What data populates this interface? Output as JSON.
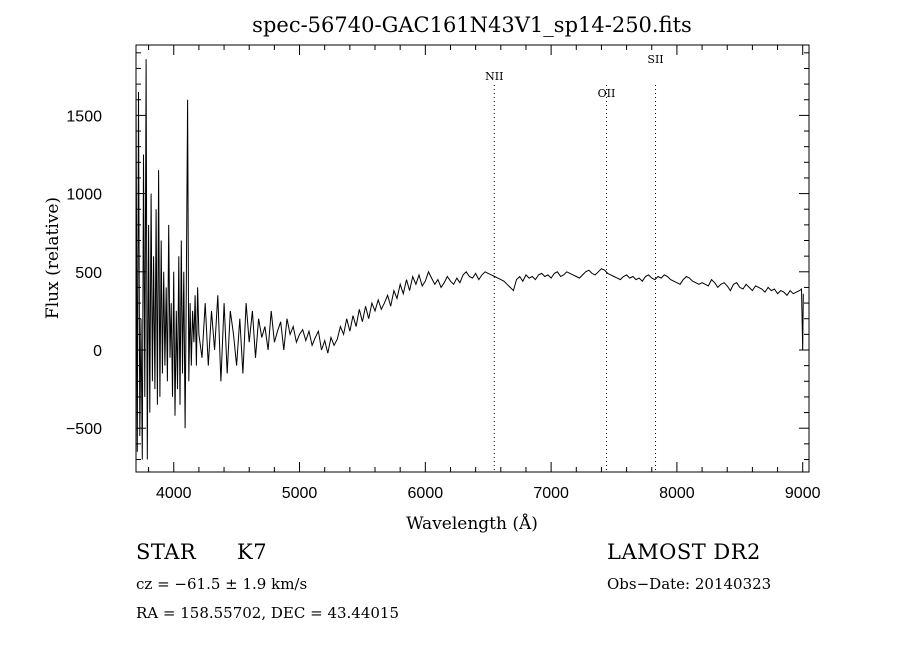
{
  "chart_data": {
    "type": "line",
    "title": "spec-56740-GAC161N43V1_sp14-250.fits",
    "xlabel": "Wavelength (Å)",
    "ylabel": "Flux (relative)",
    "xlim": [
      3700,
      9050
    ],
    "ylim": [
      -780,
      1950
    ],
    "xticks": [
      4000,
      5000,
      6000,
      7000,
      8000,
      9000
    ],
    "yticks": [
      -500,
      0,
      500,
      1000,
      1500
    ],
    "grid": false,
    "lines": [
      {
        "label": "NII",
        "x": 6548
      },
      {
        "label": "OII",
        "x": 7440
      },
      {
        "label": "SII",
        "x": 7830
      }
    ],
    "series": [
      {
        "name": "flux",
        "x": [
          3700,
          3710,
          3720,
          3730,
          3740,
          3750,
          3760,
          3770,
          3780,
          3790,
          3800,
          3810,
          3820,
          3830,
          3840,
          3850,
          3860,
          3870,
          3880,
          3890,
          3900,
          3910,
          3920,
          3930,
          3940,
          3950,
          3960,
          3970,
          3980,
          3990,
          4000,
          4010,
          4020,
          4030,
          4040,
          4050,
          4060,
          4070,
          4080,
          4090,
          4100,
          4110,
          4120,
          4130,
          4140,
          4150,
          4160,
          4170,
          4180,
          4190,
          4200,
          4225,
          4250,
          4275,
          4300,
          4325,
          4350,
          4375,
          4400,
          4425,
          4450,
          4475,
          4500,
          4525,
          4550,
          4575,
          4600,
          4625,
          4650,
          4675,
          4700,
          4725,
          4750,
          4775,
          4800,
          4825,
          4850,
          4875,
          4900,
          4925,
          4950,
          4975,
          5000,
          5025,
          5050,
          5075,
          5100,
          5125,
          5150,
          5175,
          5200,
          5225,
          5250,
          5275,
          5300,
          5325,
          5350,
          5375,
          5400,
          5425,
          5450,
          5475,
          5500,
          5525,
          5550,
          5575,
          5600,
          5625,
          5650,
          5675,
          5700,
          5725,
          5750,
          5775,
          5800,
          5825,
          5850,
          5875,
          5900,
          5925,
          5950,
          5975,
          6000,
          6025,
          6050,
          6075,
          6100,
          6125,
          6150,
          6175,
          6200,
          6225,
          6250,
          6275,
          6300,
          6325,
          6350,
          6375,
          6400,
          6425,
          6450,
          6475,
          6500,
          6525,
          6550,
          6575,
          6600,
          6625,
          6650,
          6675,
          6700,
          6725,
          6750,
          6775,
          6800,
          6825,
          6850,
          6875,
          6900,
          6925,
          6950,
          6975,
          7000,
          7025,
          7050,
          7075,
          7100,
          7125,
          7150,
          7175,
          7200,
          7225,
          7250,
          7275,
          7300,
          7325,
          7350,
          7375,
          7400,
          7425,
          7450,
          7475,
          7500,
          7525,
          7550,
          7575,
          7600,
          7625,
          7650,
          7675,
          7700,
          7725,
          7750,
          7775,
          7800,
          7825,
          7850,
          7875,
          7900,
          7925,
          7950,
          7975,
          8000,
          8025,
          8050,
          8075,
          8100,
          8125,
          8150,
          8175,
          8200,
          8225,
          8250,
          8275,
          8300,
          8325,
          8350,
          8375,
          8400,
          8425,
          8450,
          8475,
          8500,
          8525,
          8550,
          8575,
          8600,
          8625,
          8650,
          8675,
          8700,
          8725,
          8750,
          8775,
          8800,
          8825,
          8850,
          8875,
          8900,
          8925,
          8950,
          8975,
          8990,
          9000,
          9005
        ],
        "y": [
          1700,
          -650,
          1650,
          -550,
          200,
          -700,
          1250,
          -300,
          1860,
          -700,
          800,
          -400,
          1000,
          -200,
          600,
          -250,
          900,
          -350,
          1150,
          -300,
          700,
          -150,
          500,
          -100,
          400,
          -200,
          800,
          -50,
          300,
          -300,
          500,
          -420,
          250,
          -250,
          600,
          -350,
          700,
          -150,
          500,
          -500,
          400,
          1600,
          -200,
          300,
          -100,
          250,
          50,
          350,
          -100,
          400,
          100,
          -50,
          300,
          -100,
          250,
          0,
          350,
          -200,
          300,
          -150,
          250,
          100,
          -100,
          200,
          -150,
          300,
          50,
          250,
          -50,
          200,
          80,
          150,
          0,
          250,
          50,
          120,
          180,
          0,
          200,
          100,
          150,
          50,
          100,
          130,
          60,
          120,
          30,
          80,
          120,
          0,
          60,
          -20,
          80,
          30,
          70,
          150,
          100,
          200,
          120,
          220,
          150,
          260,
          180,
          280,
          200,
          300,
          250,
          320,
          260,
          300,
          350,
          280,
          380,
          330,
          420,
          360,
          450,
          380,
          470,
          420,
          480,
          410,
          440,
          500,
          460,
          420,
          450,
          400,
          430,
          470,
          440,
          420,
          460,
          430,
          480,
          500,
          470,
          460,
          490,
          450,
          480,
          500,
          490,
          480,
          470,
          460,
          450,
          440,
          420,
          400,
          380,
          450,
          470,
          440,
          480,
          460,
          470,
          450,
          480,
          490,
          470,
          480,
          460,
          490,
          500,
          470,
          480,
          500,
          490,
          480,
          470,
          460,
          480,
          500,
          510,
          490,
          480,
          500,
          520,
          510,
          490,
          480,
          470,
          460,
          450,
          470,
          480,
          460,
          470,
          450,
          460,
          440,
          470,
          480,
          460,
          450,
          470,
          460,
          480,
          470,
          450,
          440,
          430,
          420,
          450,
          470,
          460,
          440,
          430,
          420,
          430,
          420,
          410,
          450,
          430,
          400,
          420,
          430,
          410,
          380,
          420,
          430,
          400,
          390,
          420,
          400,
          380,
          410,
          400,
          390,
          370,
          400,
          380,
          390,
          360,
          380,
          370,
          350,
          380,
          360,
          370,
          380,
          390,
          0,
          360
        ]
      }
    ]
  },
  "info": {
    "object_class": "STAR",
    "subclass": "K7",
    "cz": "cz = −61.5 ± 1.9 km/s",
    "radec": "RA = 158.55702, DEC =  43.44015",
    "survey": "LAMOST DR2",
    "obs_date": "Obs−Date: 20140323"
  }
}
